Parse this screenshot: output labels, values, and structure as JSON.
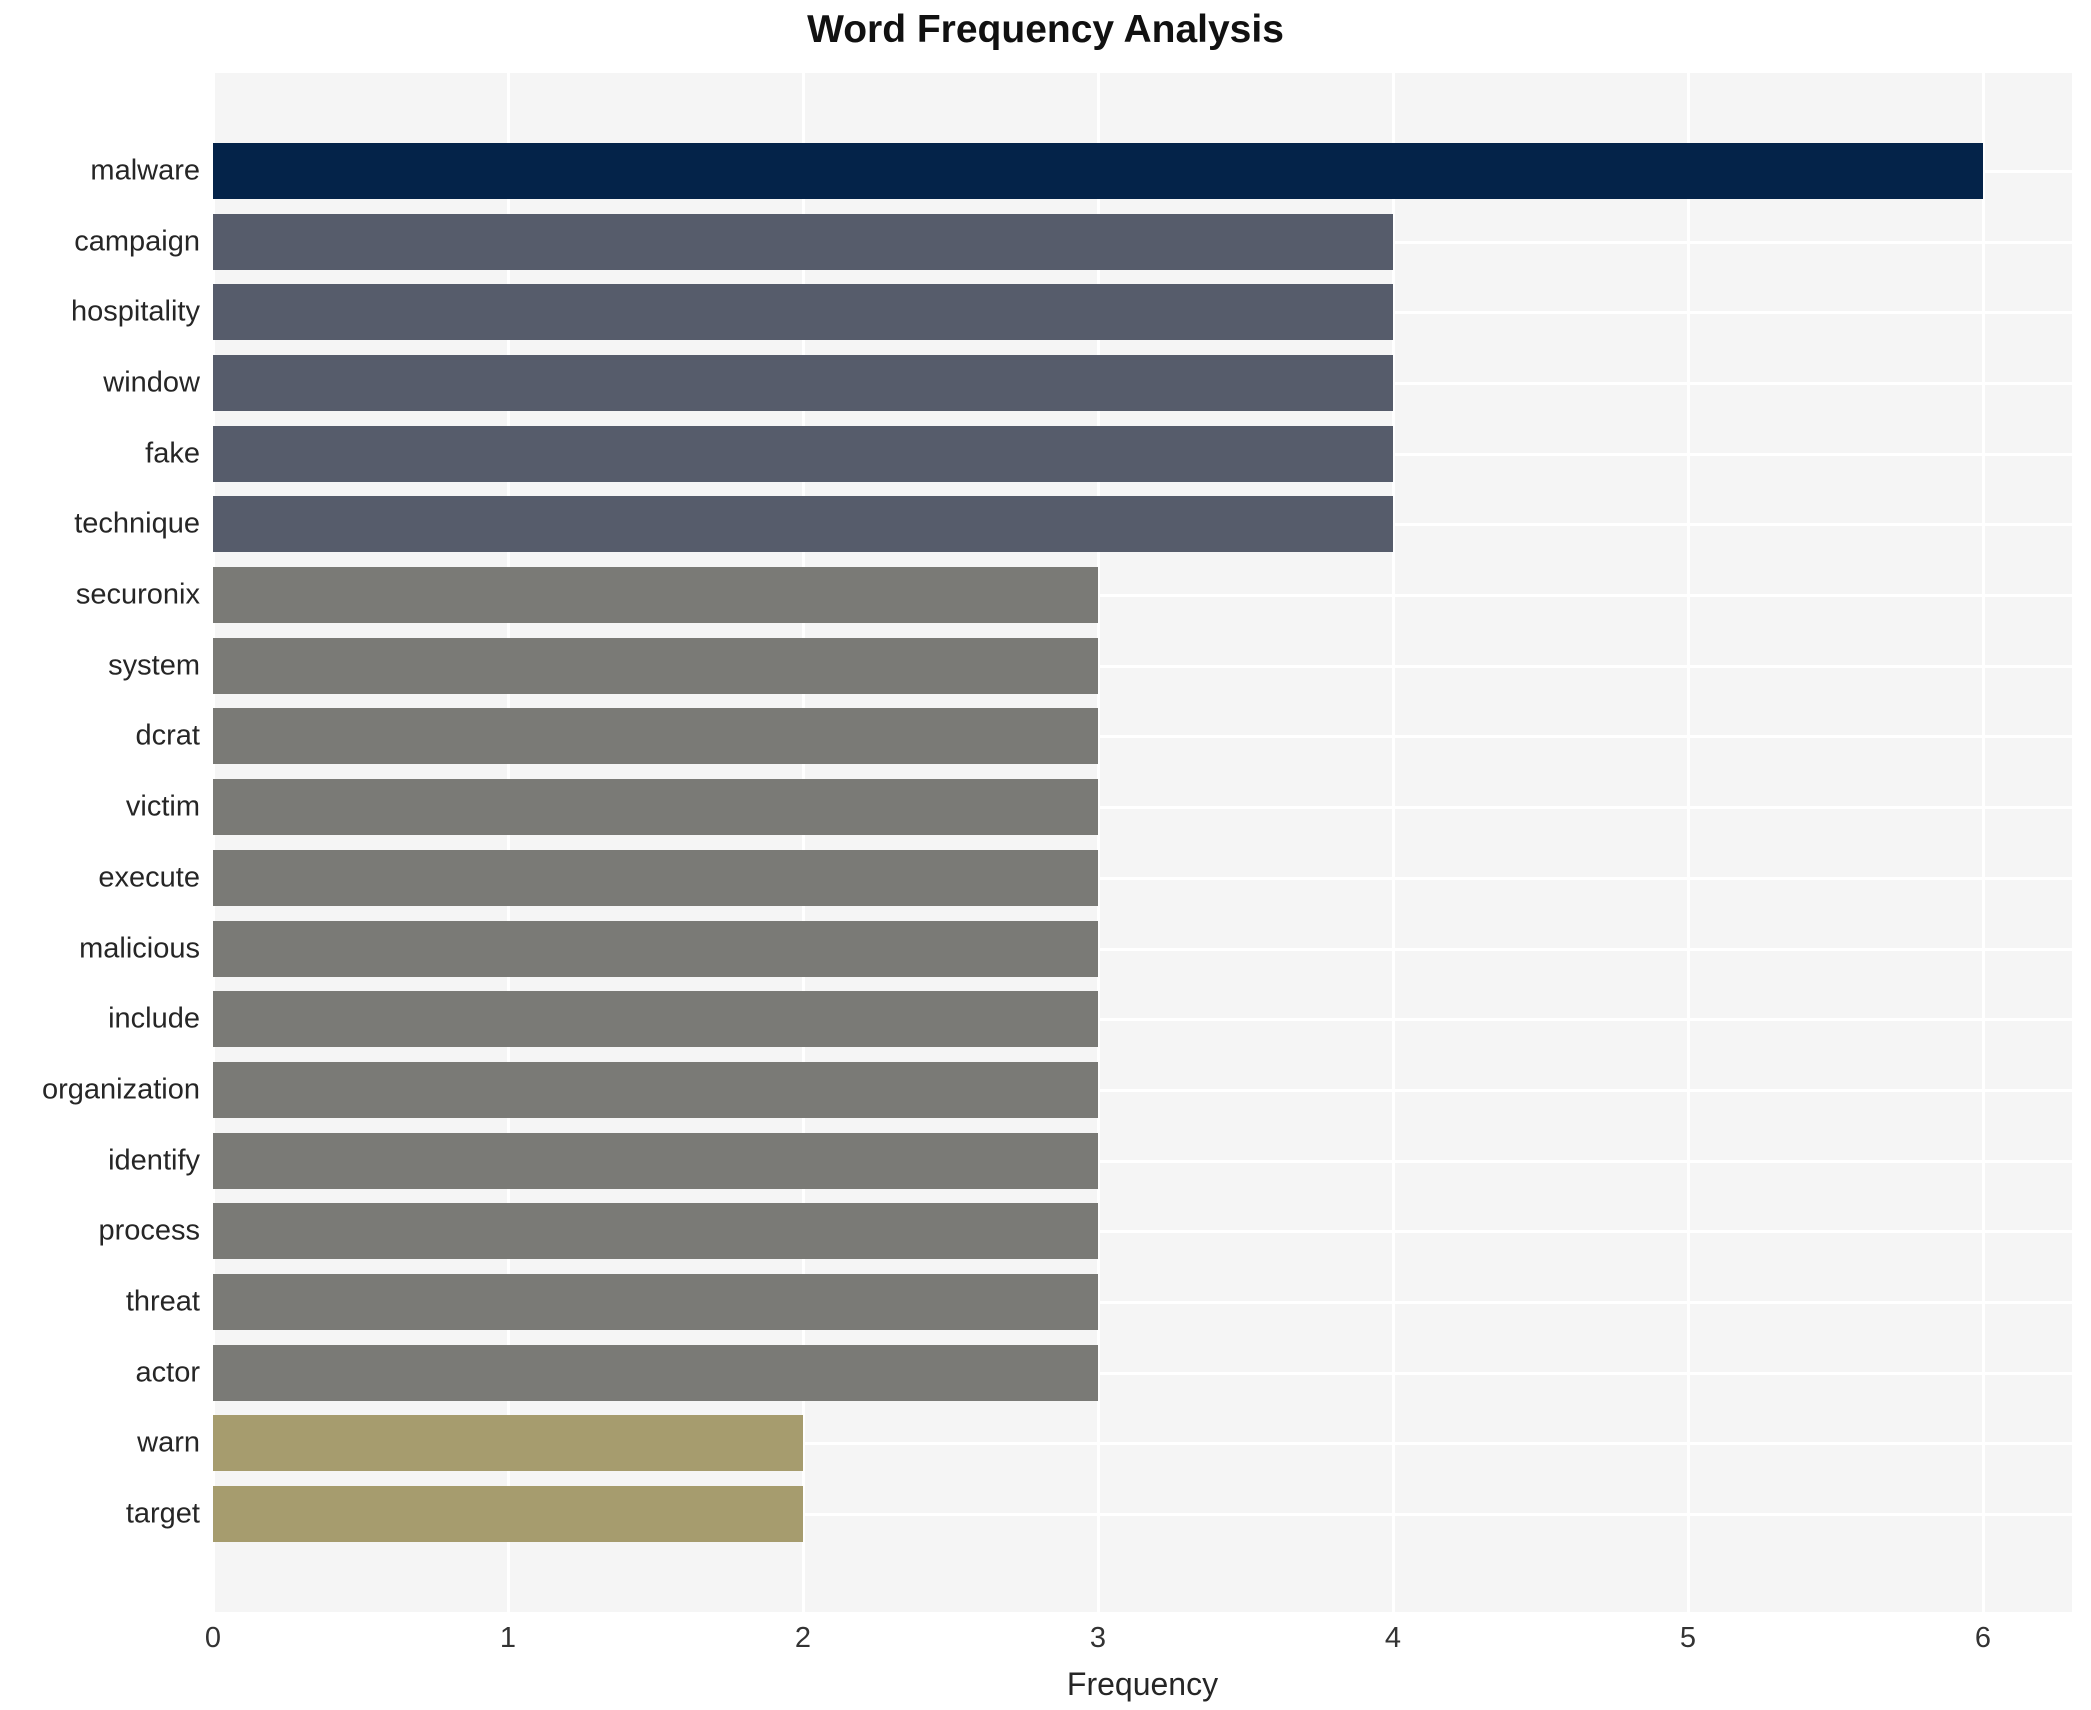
{
  "title": "Word Frequency Analysis",
  "chart_data": {
    "type": "bar",
    "orientation": "horizontal",
    "title": "Word Frequency Analysis",
    "xlabel": "Frequency",
    "ylabel": "",
    "categories": [
      "malware",
      "campaign",
      "hospitality",
      "window",
      "fake",
      "technique",
      "securonix",
      "system",
      "dcrat",
      "victim",
      "execute",
      "malicious",
      "include",
      "organization",
      "identify",
      "process",
      "threat",
      "actor",
      "warn",
      "target"
    ],
    "values": [
      6,
      4,
      4,
      4,
      4,
      4,
      3,
      3,
      3,
      3,
      3,
      3,
      3,
      3,
      3,
      3,
      3,
      3,
      2,
      2
    ],
    "xlim": [
      0,
      6
    ],
    "xticks": [
      "0",
      "1",
      "2",
      "3",
      "4",
      "5",
      "6"
    ],
    "grid": true,
    "legend_visible": false,
    "plot_background": "#f5f5f5",
    "grid_color": "#ffffff",
    "value_colors": {
      "6": "#042349",
      "4": "#565c6b",
      "3": "#7a7a76",
      "2": "#a69c6e"
    }
  }
}
